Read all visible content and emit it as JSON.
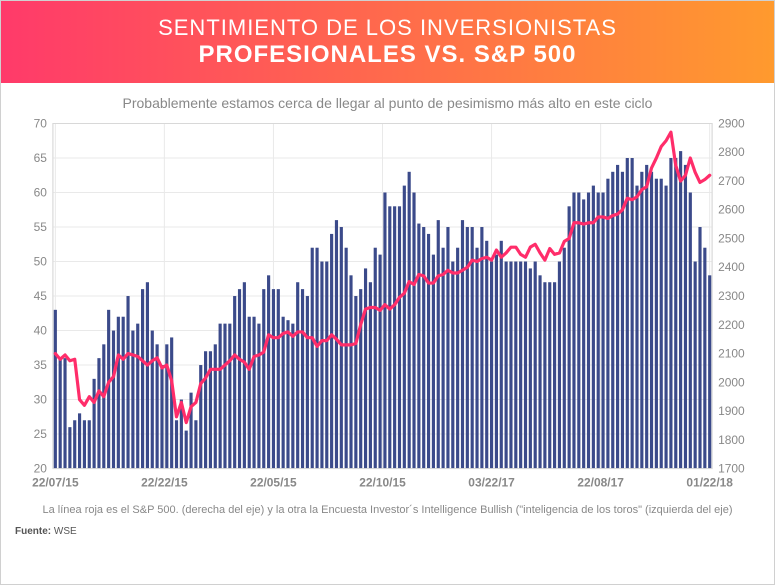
{
  "header": {
    "line1": "SENTIMIENTO DE LOS INVERSIONISTAS",
    "line2": "PROFESIONALES VS. S&P 500",
    "gradient_from": "#ff3a6a",
    "gradient_to": "#ff9a2e"
  },
  "subtitle": "Probablemente estamos cerca de llegar al punto de pesimismo más alto en este ciclo",
  "chart": {
    "type": "bar+line",
    "background_color": "#ffffff",
    "grid_color": "#e9e9e9",
    "border_color": "#d8d8d8",
    "axis_text_color": "#888888",
    "left_axis": {
      "min": 20,
      "max": 70,
      "step": 5
    },
    "right_axis": {
      "min": 1700,
      "max": 2900,
      "step": 100
    },
    "x_labels": [
      "22/07/15",
      "22/22/15",
      "22/05/15",
      "22/10/15",
      "03/22/17",
      "22/08/17",
      "01/22/18"
    ],
    "bar_color": "#3b4a8a",
    "bar_values": [
      43,
      36,
      36,
      26,
      27,
      28,
      27,
      27,
      33,
      36,
      38,
      43,
      40,
      42,
      42,
      45,
      40,
      41,
      46,
      47,
      40,
      38,
      35,
      38,
      39,
      27,
      30,
      25.5,
      31,
      27,
      35,
      37,
      37,
      38,
      41,
      41,
      41,
      45,
      46,
      47,
      42,
      42,
      41,
      46,
      48,
      46,
      46,
      42,
      41.5,
      41,
      47,
      46,
      45,
      52,
      52,
      50,
      50,
      54,
      56,
      55,
      52,
      48,
      45,
      46,
      49,
      47,
      52,
      51,
      60,
      58,
      58,
      58,
      61,
      63,
      60,
      55.5,
      55,
      54,
      51,
      56,
      52,
      55,
      50,
      52,
      56,
      55,
      55,
      52,
      55,
      53,
      50,
      51,
      53,
      50,
      50,
      50,
      50,
      50,
      49,
      50,
      48,
      47,
      47,
      47,
      50,
      52,
      58,
      60,
      60,
      59,
      60,
      61,
      60,
      60,
      62,
      63,
      64,
      63,
      65,
      65,
      61,
      63,
      64,
      63,
      62,
      62,
      61,
      65,
      65,
      66,
      64,
      60,
      50,
      55,
      52,
      48
    ],
    "line_color": "#ff2d6a",
    "line_width": 3.2,
    "line_values": [
      2100,
      2080,
      2095,
      2075,
      2080,
      1940,
      1920,
      1950,
      1930,
      1970,
      1950,
      2000,
      2020,
      2095,
      2080,
      2100,
      2095,
      2090,
      2075,
      2060,
      2075,
      2085,
      2050,
      2060,
      2005,
      1880,
      1930,
      1860,
      1915,
      1930,
      1995,
      2015,
      2045,
      2045,
      2045,
      2060,
      2075,
      2095,
      2080,
      2070,
      2045,
      2090,
      2095,
      2105,
      2165,
      2155,
      2155,
      2170,
      2175,
      2160,
      2175,
      2175,
      2155,
      2155,
      2125,
      2145,
      2145,
      2165,
      2150,
      2130,
      2130,
      2130,
      2135,
      2200,
      2255,
      2260,
      2260,
      2250,
      2270,
      2255,
      2270,
      2295,
      2310,
      2350,
      2340,
      2375,
      2370,
      2345,
      2345,
      2370,
      2375,
      2390,
      2380,
      2380,
      2390,
      2400,
      2425,
      2420,
      2430,
      2435,
      2425,
      2460,
      2435,
      2450,
      2470,
      2470,
      2445,
      2435,
      2470,
      2480,
      2450,
      2425,
      2465,
      2445,
      2450,
      2490,
      2500,
      2555,
      2555,
      2550,
      2555,
      2555,
      2575,
      2575,
      2570,
      2580,
      2585,
      2600,
      2640,
      2635,
      2645,
      2670,
      2680,
      2745,
      2780,
      2820,
      2840,
      2870,
      2755,
      2700,
      2720,
      2780,
      2730,
      2695,
      2705,
      2720
    ]
  },
  "footer_note": "La línea roja es el S&P 500. (derecha del eje) y la otra la Encuesta Investor´s Intelligence Bullish (\"inteligencia de los toros\" (izquierda del eje)",
  "source_label": "Fuente:",
  "source_value": "WSE"
}
